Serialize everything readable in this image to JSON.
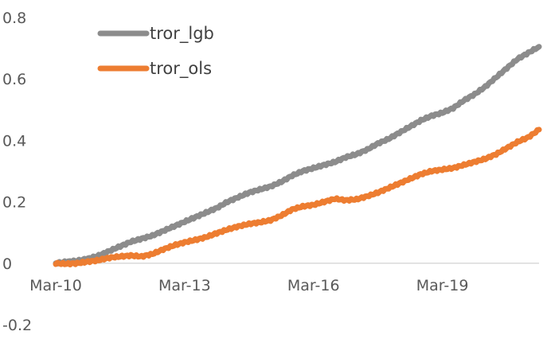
{
  "chart_data": {
    "type": "line",
    "title": "",
    "xlabel": "",
    "ylabel": "",
    "ylim": [
      -0.2,
      0.8
    ],
    "yticks": [
      {
        "value": 0.8,
        "label": "0.8"
      },
      {
        "value": 0.6,
        "label": "0.6"
      },
      {
        "value": 0.4,
        "label": "0.4"
      },
      {
        "value": 0.2,
        "label": "0.2"
      },
      {
        "value": 0,
        "label": "0"
      },
      {
        "value": -0.2,
        "label": "-0.2"
      }
    ],
    "xticks": [
      {
        "date": "2010-03",
        "label": "Mar-10"
      },
      {
        "date": "2013-03",
        "label": "Mar-13"
      },
      {
        "date": "2016-03",
        "label": "Mar-16"
      },
      {
        "date": "2019-03",
        "label": "Mar-19"
      }
    ],
    "xlim": [
      "2010-03",
      "2021-06"
    ],
    "grid": false,
    "legend_position": "top-left",
    "series": [
      {
        "name": "tror_lgb",
        "color": "#8c8c8c",
        "points": [
          [
            "2010-03",
            0.0
          ],
          [
            "2010-06",
            0.005
          ],
          [
            "2010-09",
            0.008
          ],
          [
            "2010-12",
            0.015
          ],
          [
            "2011-03",
            0.025
          ],
          [
            "2011-06",
            0.04
          ],
          [
            "2011-09",
            0.055
          ],
          [
            "2011-12",
            0.07
          ],
          [
            "2012-03",
            0.08
          ],
          [
            "2012-06",
            0.09
          ],
          [
            "2012-09",
            0.105
          ],
          [
            "2012-12",
            0.12
          ],
          [
            "2013-03",
            0.135
          ],
          [
            "2013-06",
            0.15
          ],
          [
            "2013-09",
            0.165
          ],
          [
            "2013-12",
            0.18
          ],
          [
            "2014-03",
            0.2
          ],
          [
            "2014-06",
            0.215
          ],
          [
            "2014-09",
            0.23
          ],
          [
            "2014-12",
            0.24
          ],
          [
            "2015-03",
            0.25
          ],
          [
            "2015-06",
            0.265
          ],
          [
            "2015-09",
            0.285
          ],
          [
            "2015-12",
            0.3
          ],
          [
            "2016-03",
            0.31
          ],
          [
            "2016-06",
            0.32
          ],
          [
            "2016-09",
            0.33
          ],
          [
            "2016-12",
            0.345
          ],
          [
            "2017-03",
            0.355
          ],
          [
            "2017-06",
            0.37
          ],
          [
            "2017-09",
            0.39
          ],
          [
            "2017-12",
            0.405
          ],
          [
            "2018-03",
            0.425
          ],
          [
            "2018-06",
            0.445
          ],
          [
            "2018-09",
            0.465
          ],
          [
            "2018-12",
            0.48
          ],
          [
            "2019-03",
            0.49
          ],
          [
            "2019-06",
            0.505
          ],
          [
            "2019-09",
            0.53
          ],
          [
            "2019-12",
            0.55
          ],
          [
            "2020-03",
            0.575
          ],
          [
            "2020-06",
            0.605
          ],
          [
            "2020-09",
            0.635
          ],
          [
            "2020-12",
            0.665
          ],
          [
            "2021-03",
            0.685
          ],
          [
            "2021-06",
            0.705
          ]
        ]
      },
      {
        "name": "tror_ols",
        "color": "#ed7d31",
        "points": [
          [
            "2010-03",
            0.0
          ],
          [
            "2010-06",
            -0.002
          ],
          [
            "2010-09",
            0.0
          ],
          [
            "2010-12",
            0.005
          ],
          [
            "2011-03",
            0.01
          ],
          [
            "2011-06",
            0.018
          ],
          [
            "2011-09",
            0.022
          ],
          [
            "2011-12",
            0.025
          ],
          [
            "2012-03",
            0.022
          ],
          [
            "2012-06",
            0.03
          ],
          [
            "2012-09",
            0.045
          ],
          [
            "2012-12",
            0.058
          ],
          [
            "2013-03",
            0.068
          ],
          [
            "2013-06",
            0.076
          ],
          [
            "2013-09",
            0.085
          ],
          [
            "2013-12",
            0.098
          ],
          [
            "2014-03",
            0.11
          ],
          [
            "2014-06",
            0.12
          ],
          [
            "2014-09",
            0.128
          ],
          [
            "2014-12",
            0.133
          ],
          [
            "2015-03",
            0.14
          ],
          [
            "2015-06",
            0.155
          ],
          [
            "2015-09",
            0.175
          ],
          [
            "2015-12",
            0.185
          ],
          [
            "2016-03",
            0.19
          ],
          [
            "2016-06",
            0.2
          ],
          [
            "2016-09",
            0.21
          ],
          [
            "2016-12",
            0.205
          ],
          [
            "2017-03",
            0.208
          ],
          [
            "2017-06",
            0.218
          ],
          [
            "2017-09",
            0.23
          ],
          [
            "2017-12",
            0.245
          ],
          [
            "2018-03",
            0.26
          ],
          [
            "2018-06",
            0.275
          ],
          [
            "2018-09",
            0.29
          ],
          [
            "2018-12",
            0.3
          ],
          [
            "2019-03",
            0.305
          ],
          [
            "2019-06",
            0.31
          ],
          [
            "2019-09",
            0.32
          ],
          [
            "2019-12",
            0.33
          ],
          [
            "2020-03",
            0.34
          ],
          [
            "2020-06",
            0.355
          ],
          [
            "2020-09",
            0.375
          ],
          [
            "2020-12",
            0.395
          ],
          [
            "2021-03",
            0.41
          ],
          [
            "2021-06",
            0.435
          ]
        ]
      }
    ]
  }
}
